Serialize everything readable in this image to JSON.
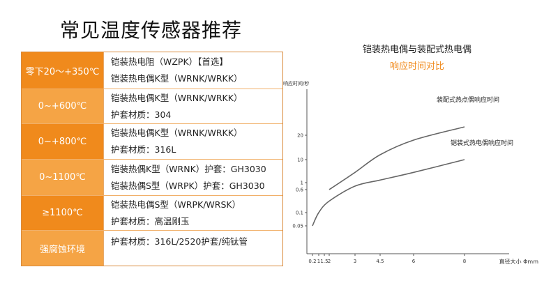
{
  "page": {
    "title": "常见温度传感器推荐"
  },
  "colors": {
    "range_dark": "#f08a1c",
    "range_light": "#f5a445",
    "subtitle": "#f08a1c",
    "axis": "#555555",
    "curve": "#666666"
  },
  "table": {
    "rows": [
      {
        "range": "零下20～+350℃",
        "lines": [
          "铠装热电阻（WZPK）【首选】",
          "铠装热电偶K型（WRNK/WRKK）"
        ]
      },
      {
        "range": "0~+600℃",
        "lines": [
          "铠装热电偶K型（WRNK/WRKK）",
          "护套材质：304"
        ]
      },
      {
        "range": "0~+800℃",
        "lines": [
          "铠装热电偶K型（WRNK/WRKK）",
          "护套材质：316L"
        ]
      },
      {
        "range": "0~1100℃",
        "lines": [
          "铠装热偶K型（WRNK）护套：GH3030",
          "铠装热偶S型（WRPK）护套：GH3030"
        ]
      },
      {
        "range": "≥1100℃",
        "lines": [
          "铠装热电偶S型（WRPK/WRSK）",
          "护套材质：高温刚玉"
        ]
      },
      {
        "range": "强腐蚀环境",
        "lines": [
          "护套材质：316L/2520护套/纯钛管"
        ]
      }
    ]
  },
  "chart_data": {
    "type": "line",
    "title": "铠装热电偶与装配式热电偶",
    "subtitle": "响应时间对比",
    "ylabel": "响应时间/秒",
    "xlabel": "直径大小 Φmm",
    "x_ticks": [
      "0.2",
      "1",
      "1.5",
      "2",
      "3",
      "4.5",
      "6",
      "8"
    ],
    "y_ticks": [
      "0.05",
      "0.1",
      "0.6",
      "1",
      "10",
      "20"
    ],
    "grid": false,
    "series": [
      {
        "name": "装配式热点偶响应时间",
        "x": [
          2,
          3,
          4.5,
          6,
          8
        ],
        "y": [
          0.6,
          5,
          12,
          18,
          25
        ]
      },
      {
        "name": "铠装式热电偶响应时间",
        "x": [
          0.2,
          1,
          2,
          3,
          4.5,
          6,
          8
        ],
        "y": [
          0.05,
          0.1,
          0.35,
          0.8,
          2,
          5,
          10
        ]
      }
    ]
  }
}
